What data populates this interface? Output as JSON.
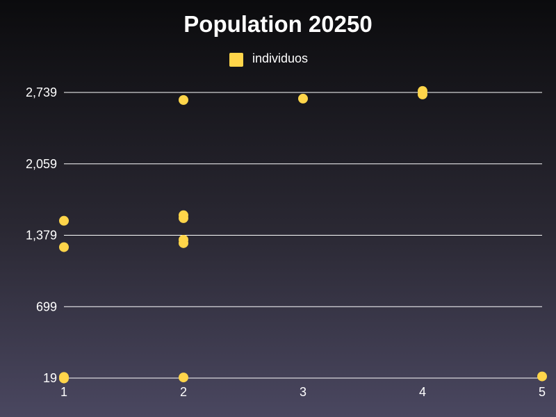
{
  "chart_data": {
    "type": "scatter",
    "title": "Population 20250",
    "xlabel": "",
    "ylabel": "",
    "legend": {
      "position": "top-center"
    },
    "grid": true,
    "xlim": [
      1,
      5
    ],
    "ylim": [
      19,
      2739
    ],
    "x_ticks": [
      "1",
      "2",
      "3",
      "4",
      "5"
    ],
    "y_ticks": [
      "19",
      "699",
      "1,379",
      "2,059",
      "2,739"
    ],
    "y_tick_values": [
      19,
      699,
      1379,
      2059,
      2739
    ],
    "series": [
      {
        "name": "individuos",
        "color": "#ffd54a",
        "points": [
          {
            "x": 1,
            "y": 15
          },
          {
            "x": 1,
            "y": 30
          },
          {
            "x": 1,
            "y": 1266
          },
          {
            "x": 1,
            "y": 1517
          },
          {
            "x": 2,
            "y": 25
          },
          {
            "x": 2,
            "y": 1304
          },
          {
            "x": 2,
            "y": 1336
          },
          {
            "x": 2,
            "y": 1542
          },
          {
            "x": 2,
            "y": 1570
          },
          {
            "x": 2,
            "y": 2667
          },
          {
            "x": 3,
            "y": 2680
          },
          {
            "x": 4,
            "y": 2720
          },
          {
            "x": 4,
            "y": 2753
          },
          {
            "x": 5,
            "y": 35
          }
        ]
      }
    ]
  }
}
